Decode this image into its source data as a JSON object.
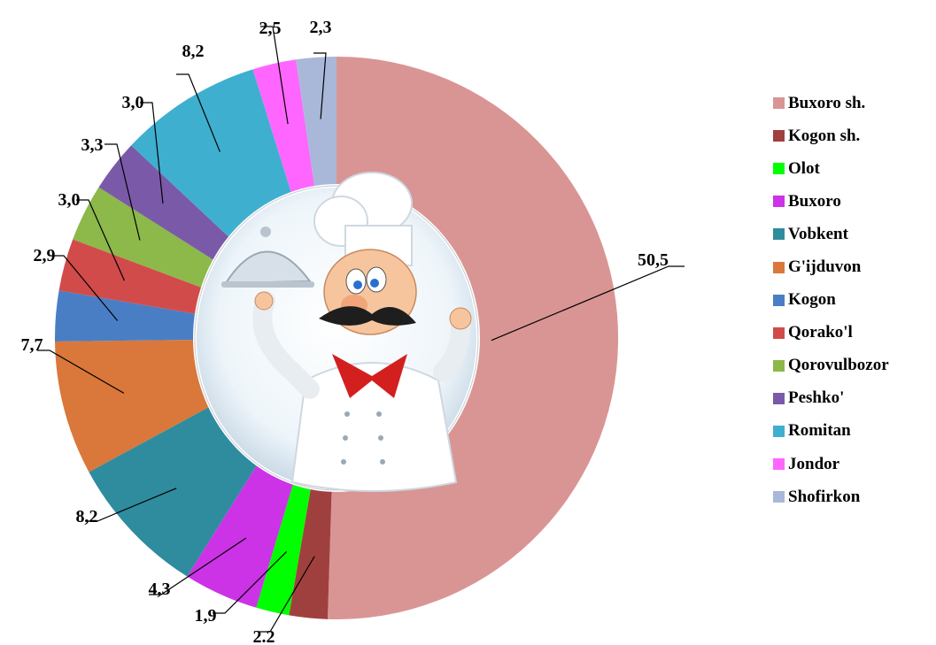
{
  "chart_data": {
    "type": "pie",
    "variant": "donut",
    "title": "",
    "categories": [
      "Buxoro sh.",
      "Kogon sh.",
      "Olot",
      "Buxoro",
      "Vobkent",
      "G'ijduvon",
      "Kogon",
      "Qorako'l",
      "Qorovulbozor",
      "Peshko'",
      "Romitan",
      "Jondor",
      "Shofirkon"
    ],
    "values": [
      50.5,
      2.2,
      1.9,
      4.3,
      8.2,
      7.7,
      2.9,
      3.0,
      3.3,
      3.0,
      8.2,
      2.5,
      2.3
    ],
    "value_labels": [
      "50,5",
      "2.2",
      "1,9",
      "4,3",
      "8,2",
      "7,7",
      "2,9",
      "3,0",
      "3,3",
      "3,0",
      "8,2",
      "2,5",
      "2,3"
    ],
    "colors": [
      "#D99594",
      "#A0403E",
      "#00FF00",
      "#CC33E6",
      "#2F8C9E",
      "#D9783A",
      "#4A7EC4",
      "#D24B4B",
      "#8DB84A",
      "#7A5AA8",
      "#3FAFCF",
      "#FF66FF",
      "#A9B8D8"
    ],
    "legend_position": "right",
    "center_image": "chef-illustration"
  }
}
